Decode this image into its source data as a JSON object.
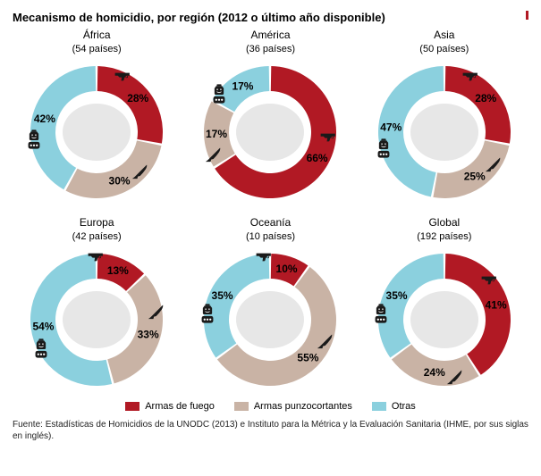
{
  "title": "Mecanismo de homicidio, por región (2012 o último año disponible)",
  "colors": {
    "firearm": "#b11924",
    "sharp": "#c9b3a5",
    "other": "#8bd0de",
    "pct_text": "#000000",
    "bg": "#ffffff",
    "map_fill": "#e7e7e7"
  },
  "donut": {
    "outerR": 74,
    "innerR": 46,
    "gap_deg": 2,
    "label_fontsize": 12,
    "label_weight": "bold",
    "title_fontsize": 12,
    "sub_fontsize": 11
  },
  "legend": {
    "items": [
      {
        "key": "firearm",
        "label": "Armas de fuego"
      },
      {
        "key": "sharp",
        "label": "Armas punzocortantes"
      },
      {
        "key": "other",
        "label": "Otras"
      }
    ]
  },
  "icons": {
    "firearm": "gun-icon",
    "sharp": "knife-icon",
    "other": "poison-knuckle-icon"
  },
  "charts": [
    {
      "title": "África",
      "sub": "(54 países)",
      "values": {
        "firearm": 28,
        "sharp": 30,
        "other": 42
      }
    },
    {
      "title": "América",
      "sub": "(36 países)",
      "values": {
        "firearm": 66,
        "sharp": 17,
        "other": 17
      }
    },
    {
      "title": "Asia",
      "sub": "(50 países)",
      "values": {
        "firearm": 28,
        "sharp": 25,
        "other": 47
      }
    },
    {
      "title": "Europa",
      "sub": "(42 países)",
      "values": {
        "firearm": 13,
        "sharp": 33,
        "other": 54
      }
    },
    {
      "title": "Oceanía",
      "sub": "(10 países)",
      "values": {
        "firearm": 10,
        "sharp": 55,
        "other": 35
      }
    },
    {
      "title": "Global",
      "sub": "(192 países)",
      "values": {
        "firearm": 41,
        "sharp": 24,
        "other": 35
      }
    }
  ],
  "source": "Fuente: Estadísticas de Homicidios de la UNODC (2013) e Instituto para la Métrica y la Evaluación Sanitaria (IHME, por sus siglas en inglés)."
}
